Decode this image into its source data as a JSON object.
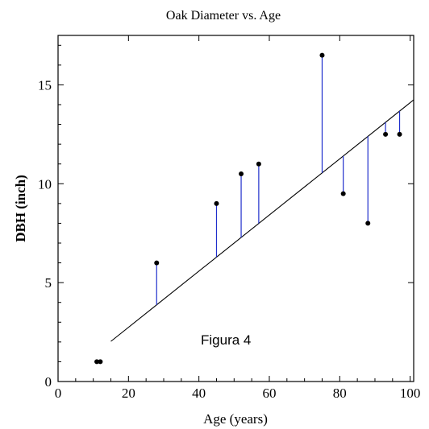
{
  "chart_data": {
    "type": "scatter",
    "title": "Oak Diameter vs. Age",
    "xlabel": "Age (years)",
    "ylabel": "DBH (inch)",
    "annotation": "Figura 4",
    "xlim": [
      0,
      101
    ],
    "ylim": [
      0,
      17.5
    ],
    "xticks": [
      0,
      20,
      40,
      60,
      80,
      100
    ],
    "yticks": [
      0,
      5,
      10,
      15
    ],
    "points": [
      {
        "x": 11,
        "y": 1
      },
      {
        "x": 12,
        "y": 1
      },
      {
        "x": 28,
        "y": 6
      },
      {
        "x": 45,
        "y": 9
      },
      {
        "x": 52,
        "y": 10.5
      },
      {
        "x": 57,
        "y": 11
      },
      {
        "x": 75,
        "y": 16.5
      },
      {
        "x": 81,
        "y": 9.5
      },
      {
        "x": 88,
        "y": 8
      },
      {
        "x": 93,
        "y": 12.5
      },
      {
        "x": 97,
        "y": 12.5
      }
    ],
    "fit_line": {
      "intercept": -0.1,
      "slope": 0.142
    },
    "show_residuals": true,
    "colors": {
      "points": "#000000",
      "fit": "#000000",
      "residuals": "#1f2fcc",
      "axes": "#000000"
    }
  }
}
